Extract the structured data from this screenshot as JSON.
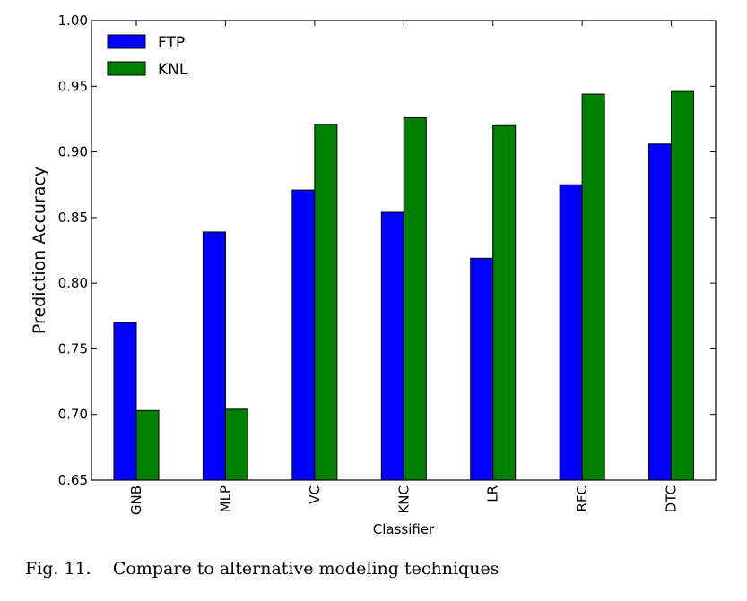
{
  "chart_data": {
    "type": "bar",
    "categories": [
      "GNB",
      "MLP",
      "VC",
      "KNC",
      "LR",
      "RFC",
      "DTC"
    ],
    "series": [
      {
        "name": "FTP",
        "color": "#0000ff",
        "values": [
          0.77,
          0.839,
          0.871,
          0.854,
          0.819,
          0.875,
          0.906
        ]
      },
      {
        "name": "KNL",
        "color": "#008000",
        "values": [
          0.703,
          0.704,
          0.921,
          0.926,
          0.92,
          0.944,
          0.946
        ]
      }
    ],
    "xlabel": "Classifier",
    "ylabel": "Prediction Accuracy",
    "ylim": [
      0.65,
      1.0
    ],
    "yticks": [
      "0.65",
      "0.70",
      "0.75",
      "0.80",
      "0.85",
      "0.90",
      "0.95",
      "1.00"
    ],
    "grid": false,
    "legend_position": "top-left"
  },
  "caption": {
    "label": "Fig. 11.",
    "text": "Compare to alternative modeling techniques"
  }
}
